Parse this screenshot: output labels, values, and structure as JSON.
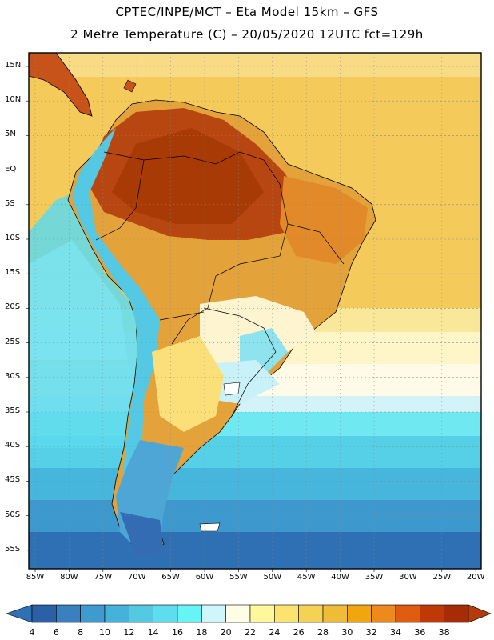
{
  "header": {
    "line1": "CPTEC/INPE/MCT –  Eta Model 15km – GFS",
    "line2": "2 Metre Temperature (C) – 20/05/2020 12UTC fct=129h"
  },
  "map": {
    "region": "South America",
    "lat_labels": [
      "15N",
      "10N",
      "5N",
      "EQ",
      "5S",
      "10S",
      "15S",
      "20S",
      "25S",
      "30S",
      "35S",
      "40S",
      "45S",
      "50S",
      "55S"
    ],
    "lon_labels": [
      "85W",
      "80W",
      "75W",
      "70W",
      "65W",
      "60W",
      "55W",
      "50W",
      "45W",
      "40W",
      "35W",
      "30W",
      "25W",
      "20W"
    ]
  },
  "colorbar": {
    "ticks": [
      "4",
      "6",
      "8",
      "10",
      "12",
      "14",
      "16",
      "18",
      "20",
      "22",
      "24",
      "26",
      "28",
      "30",
      "32",
      "34",
      "36",
      "38"
    ],
    "colors": [
      "#2b5fa6",
      "#3a7fbf",
      "#3f9acf",
      "#45b2d9",
      "#54c9e3",
      "#5ddded",
      "#66f4f7",
      "#cff6fb",
      "#fffde6",
      "#fff79c",
      "#fbe36f",
      "#f6d254",
      "#eebc36",
      "#f0a70f",
      "#ec8a1e",
      "#df5c10",
      "#bf3806",
      "#a72b05"
    ],
    "low_color": "#2f6fb4",
    "high_color": "#b43a0e"
  }
}
